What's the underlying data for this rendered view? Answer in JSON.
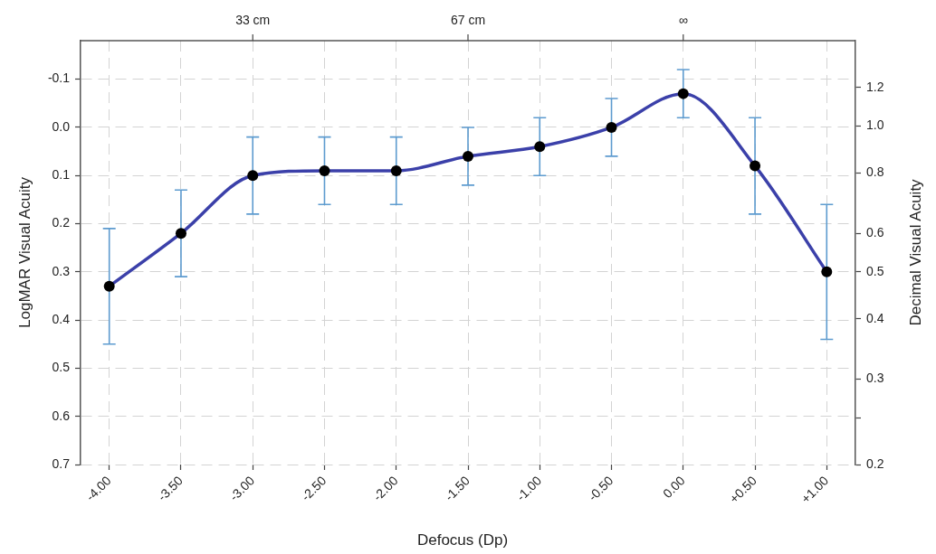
{
  "chart_data": {
    "type": "line",
    "xlabel": "Defocus (Dp)",
    "ylabel": "LogMAR Visual Acuity",
    "y2label": "Decimal Visual Acuity",
    "x": [
      -4,
      -3.5,
      -3,
      -2.5,
      -2,
      -1.5,
      -1,
      -0.5,
      0,
      0.5,
      1
    ],
    "xlim": [
      -4.2,
      1.2
    ],
    "xticks": [
      {
        "value": -4,
        "label": "-4.00"
      },
      {
        "value": -3.5,
        "label": "-3.50"
      },
      {
        "value": -3,
        "label": "-3.00"
      },
      {
        "value": -2.5,
        "label": "-2.50"
      },
      {
        "value": -2,
        "label": "-2.00"
      },
      {
        "value": -1.5,
        "label": "-1.50"
      },
      {
        "value": -1,
        "label": "-1.00"
      },
      {
        "value": -0.5,
        "label": "-0.50"
      },
      {
        "value": 0,
        "label": "0.00"
      },
      {
        "value": 0.5,
        "label": "+0.50"
      },
      {
        "value": 1,
        "label": "+1.00"
      }
    ],
    "ylim": [
      0.7,
      -0.18
    ],
    "yticks": [
      -0.1,
      {
        "value": 0,
        "label": "0.0"
      },
      0.1,
      0.2,
      0.3,
      0.4,
      0.5,
      0.6,
      0.7
    ],
    "y2lim": [
      0.2,
      1.5
    ],
    "y2ticks": [
      {
        "value": 1.2,
        "label": "1.2"
      },
      {
        "value": 1,
        "label": "1.0"
      },
      0.8,
      0.6,
      0.5,
      0.4,
      0.3,
      {
        "value": 0.25,
        "label": null
      },
      0.2
    ],
    "log": "y2",
    "annotations": [
      {
        "text": "33 cm",
        "x": -3
      },
      {
        "text": "67 cm",
        "x": -1.5
      },
      {
        "text": "∞",
        "x": 0
      }
    ],
    "grid": true,
    "marker": "circle",
    "series": [
      {
        "color": "#3b40a9",
        "values": [
          0.33,
          0.22,
          0.1,
          0.09,
          0.09,
          0.06,
          0.04,
          0.0,
          -0.07,
          0.08,
          0.3
        ],
        "errors": [
          0.12,
          0.09,
          0.08,
          0.07,
          0.07,
          0.06,
          0.06,
          0.06,
          0.05,
          0.1,
          0.14
        ]
      }
    ]
  }
}
